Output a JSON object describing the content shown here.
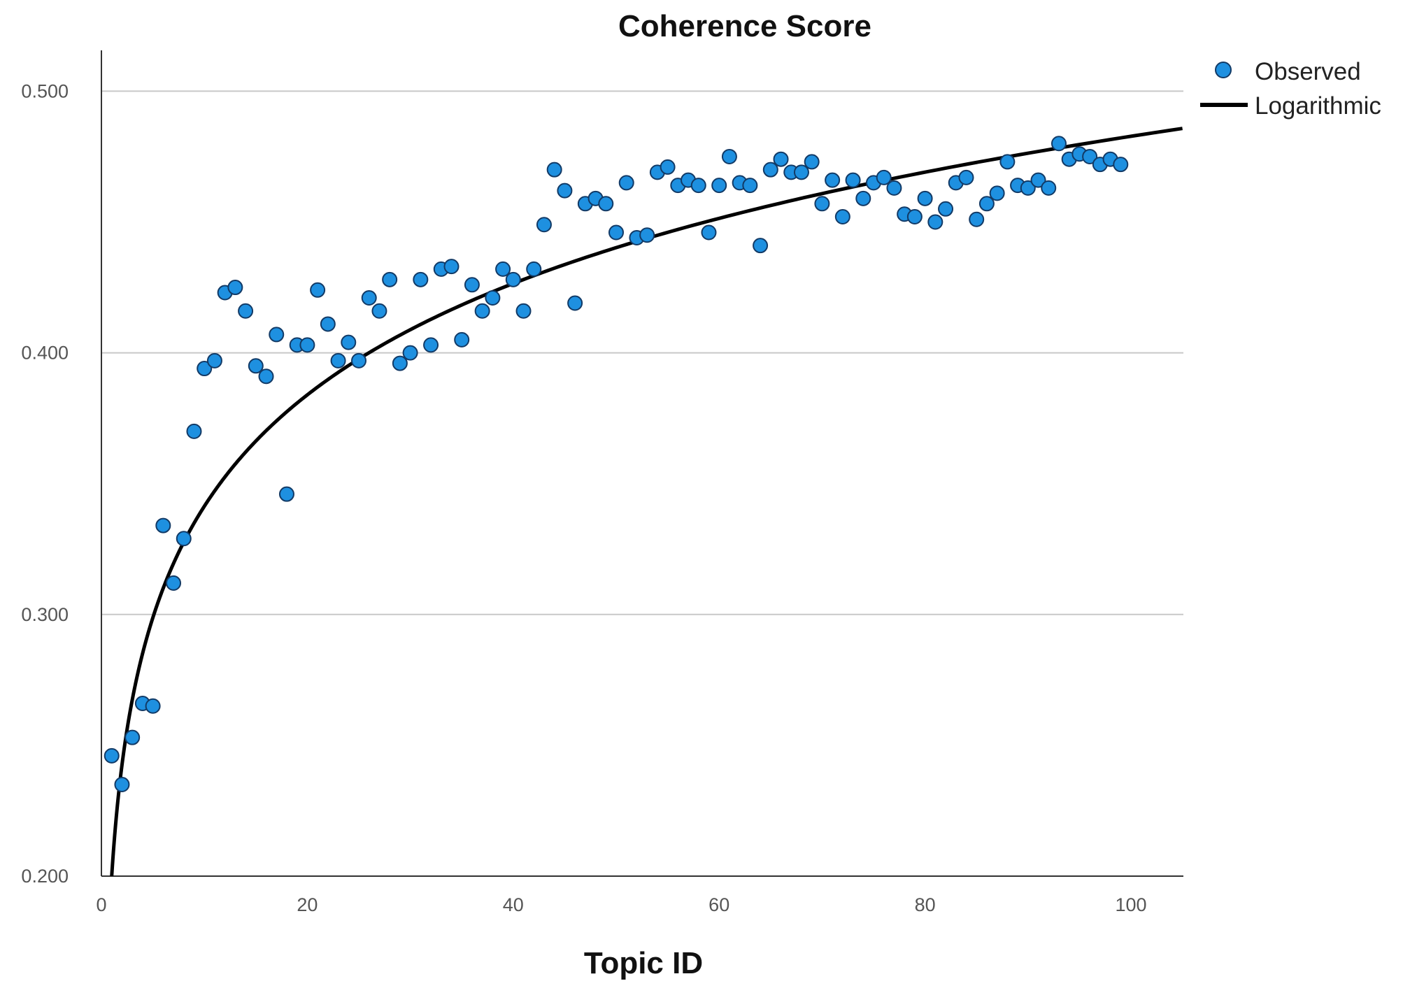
{
  "chart_data": {
    "type": "scatter",
    "title": "Coherence Score",
    "xlabel": "Topic ID",
    "ylabel": "",
    "xlim": [
      0,
      105
    ],
    "ylim": [
      0.2,
      0.515
    ],
    "xticks": [
      0,
      20,
      40,
      60,
      80,
      100
    ],
    "xtick_labels": [
      "0",
      "20",
      "40",
      "60",
      "80",
      "100"
    ],
    "yticks": [
      0.2,
      0.3,
      0.4,
      0.5
    ],
    "ytick_labels": [
      "0.200",
      "0.300",
      "0.400",
      "0.500"
    ],
    "grid": "horizontal",
    "legend": {
      "position": "top-right",
      "entries": [
        "Observed",
        "Logarithmic"
      ]
    },
    "series": [
      {
        "name": "Observed",
        "kind": "scatter",
        "color": "#1E90E0",
        "x": [
          1,
          2,
          3,
          4,
          5,
          6,
          7,
          8,
          9,
          10,
          11,
          12,
          13,
          14,
          15,
          16,
          17,
          18,
          19,
          20,
          21,
          22,
          23,
          24,
          25,
          26,
          27,
          28,
          29,
          30,
          31,
          32,
          33,
          34,
          35,
          36,
          37,
          38,
          39,
          40,
          41,
          42,
          43,
          44,
          45,
          46,
          47,
          48,
          49,
          50,
          51,
          52,
          53,
          54,
          55,
          56,
          57,
          58,
          59,
          60,
          61,
          62,
          63,
          64,
          65,
          66,
          67,
          68,
          69,
          70,
          71,
          72,
          73,
          74,
          75,
          76,
          77,
          78,
          79,
          80,
          81,
          82,
          83,
          84,
          85,
          86,
          87,
          88,
          89,
          90,
          91,
          92,
          93,
          94,
          95,
          96,
          97,
          98,
          99
        ],
        "y": [
          0.246,
          0.235,
          0.253,
          0.266,
          0.265,
          0.334,
          0.312,
          0.329,
          0.37,
          0.394,
          0.397,
          0.423,
          0.425,
          0.416,
          0.395,
          0.391,
          0.407,
          0.346,
          0.403,
          0.403,
          0.424,
          0.411,
          0.397,
          0.404,
          0.397,
          0.421,
          0.416,
          0.428,
          0.396,
          0.4,
          0.428,
          0.403,
          0.432,
          0.433,
          0.405,
          0.426,
          0.416,
          0.421,
          0.432,
          0.428,
          0.416,
          0.432,
          0.449,
          0.47,
          0.462,
          0.419,
          0.457,
          0.459,
          0.457,
          0.446,
          0.465,
          0.444,
          0.445,
          0.469,
          0.471,
          0.464,
          0.466,
          0.464,
          0.446,
          0.464,
          0.475,
          0.465,
          0.464,
          0.441,
          0.47,
          0.474,
          0.469,
          0.469,
          0.473,
          0.457,
          0.466,
          0.452,
          0.466,
          0.459,
          0.465,
          0.467,
          0.463,
          0.453,
          0.452,
          0.459,
          0.45,
          0.455,
          0.465,
          0.467,
          0.451,
          0.457,
          0.461,
          0.473,
          0.464,
          0.463,
          0.466,
          0.463,
          0.48,
          0.474,
          0.476,
          0.475,
          0.472,
          0.474,
          0.472
        ]
      },
      {
        "name": "Logarithmic",
        "kind": "line",
        "color": "#000000",
        "model": "y = a + b*ln(x)",
        "a": 0.2,
        "b": 0.0614,
        "x_range": [
          1,
          105
        ]
      }
    ]
  }
}
